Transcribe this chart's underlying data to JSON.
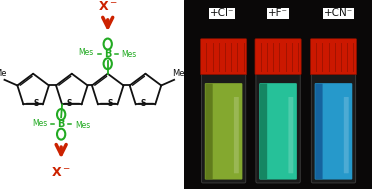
{
  "figure_width": 3.72,
  "figure_height": 1.89,
  "dpi": 100,
  "bg_color": "#ffffff",
  "structure": {
    "arrow_color": "#cc2200",
    "boron_color": "#22aa22",
    "bond_color": "#111111"
  },
  "right_panel": {
    "bg": "#0a0808",
    "labels": [
      "+Cl⁻",
      "+F⁻",
      "+CN⁻"
    ],
    "label_fontsize": 7.5,
    "vial_colors_glow": [
      "#90b832",
      "#28d4a8",
      "#28a8e0"
    ],
    "vial_colors_dark": [
      "#4a6010",
      "#0a6040",
      "#0a4080"
    ],
    "cap_color": "#cc1800",
    "cap_dark": "#881000"
  }
}
